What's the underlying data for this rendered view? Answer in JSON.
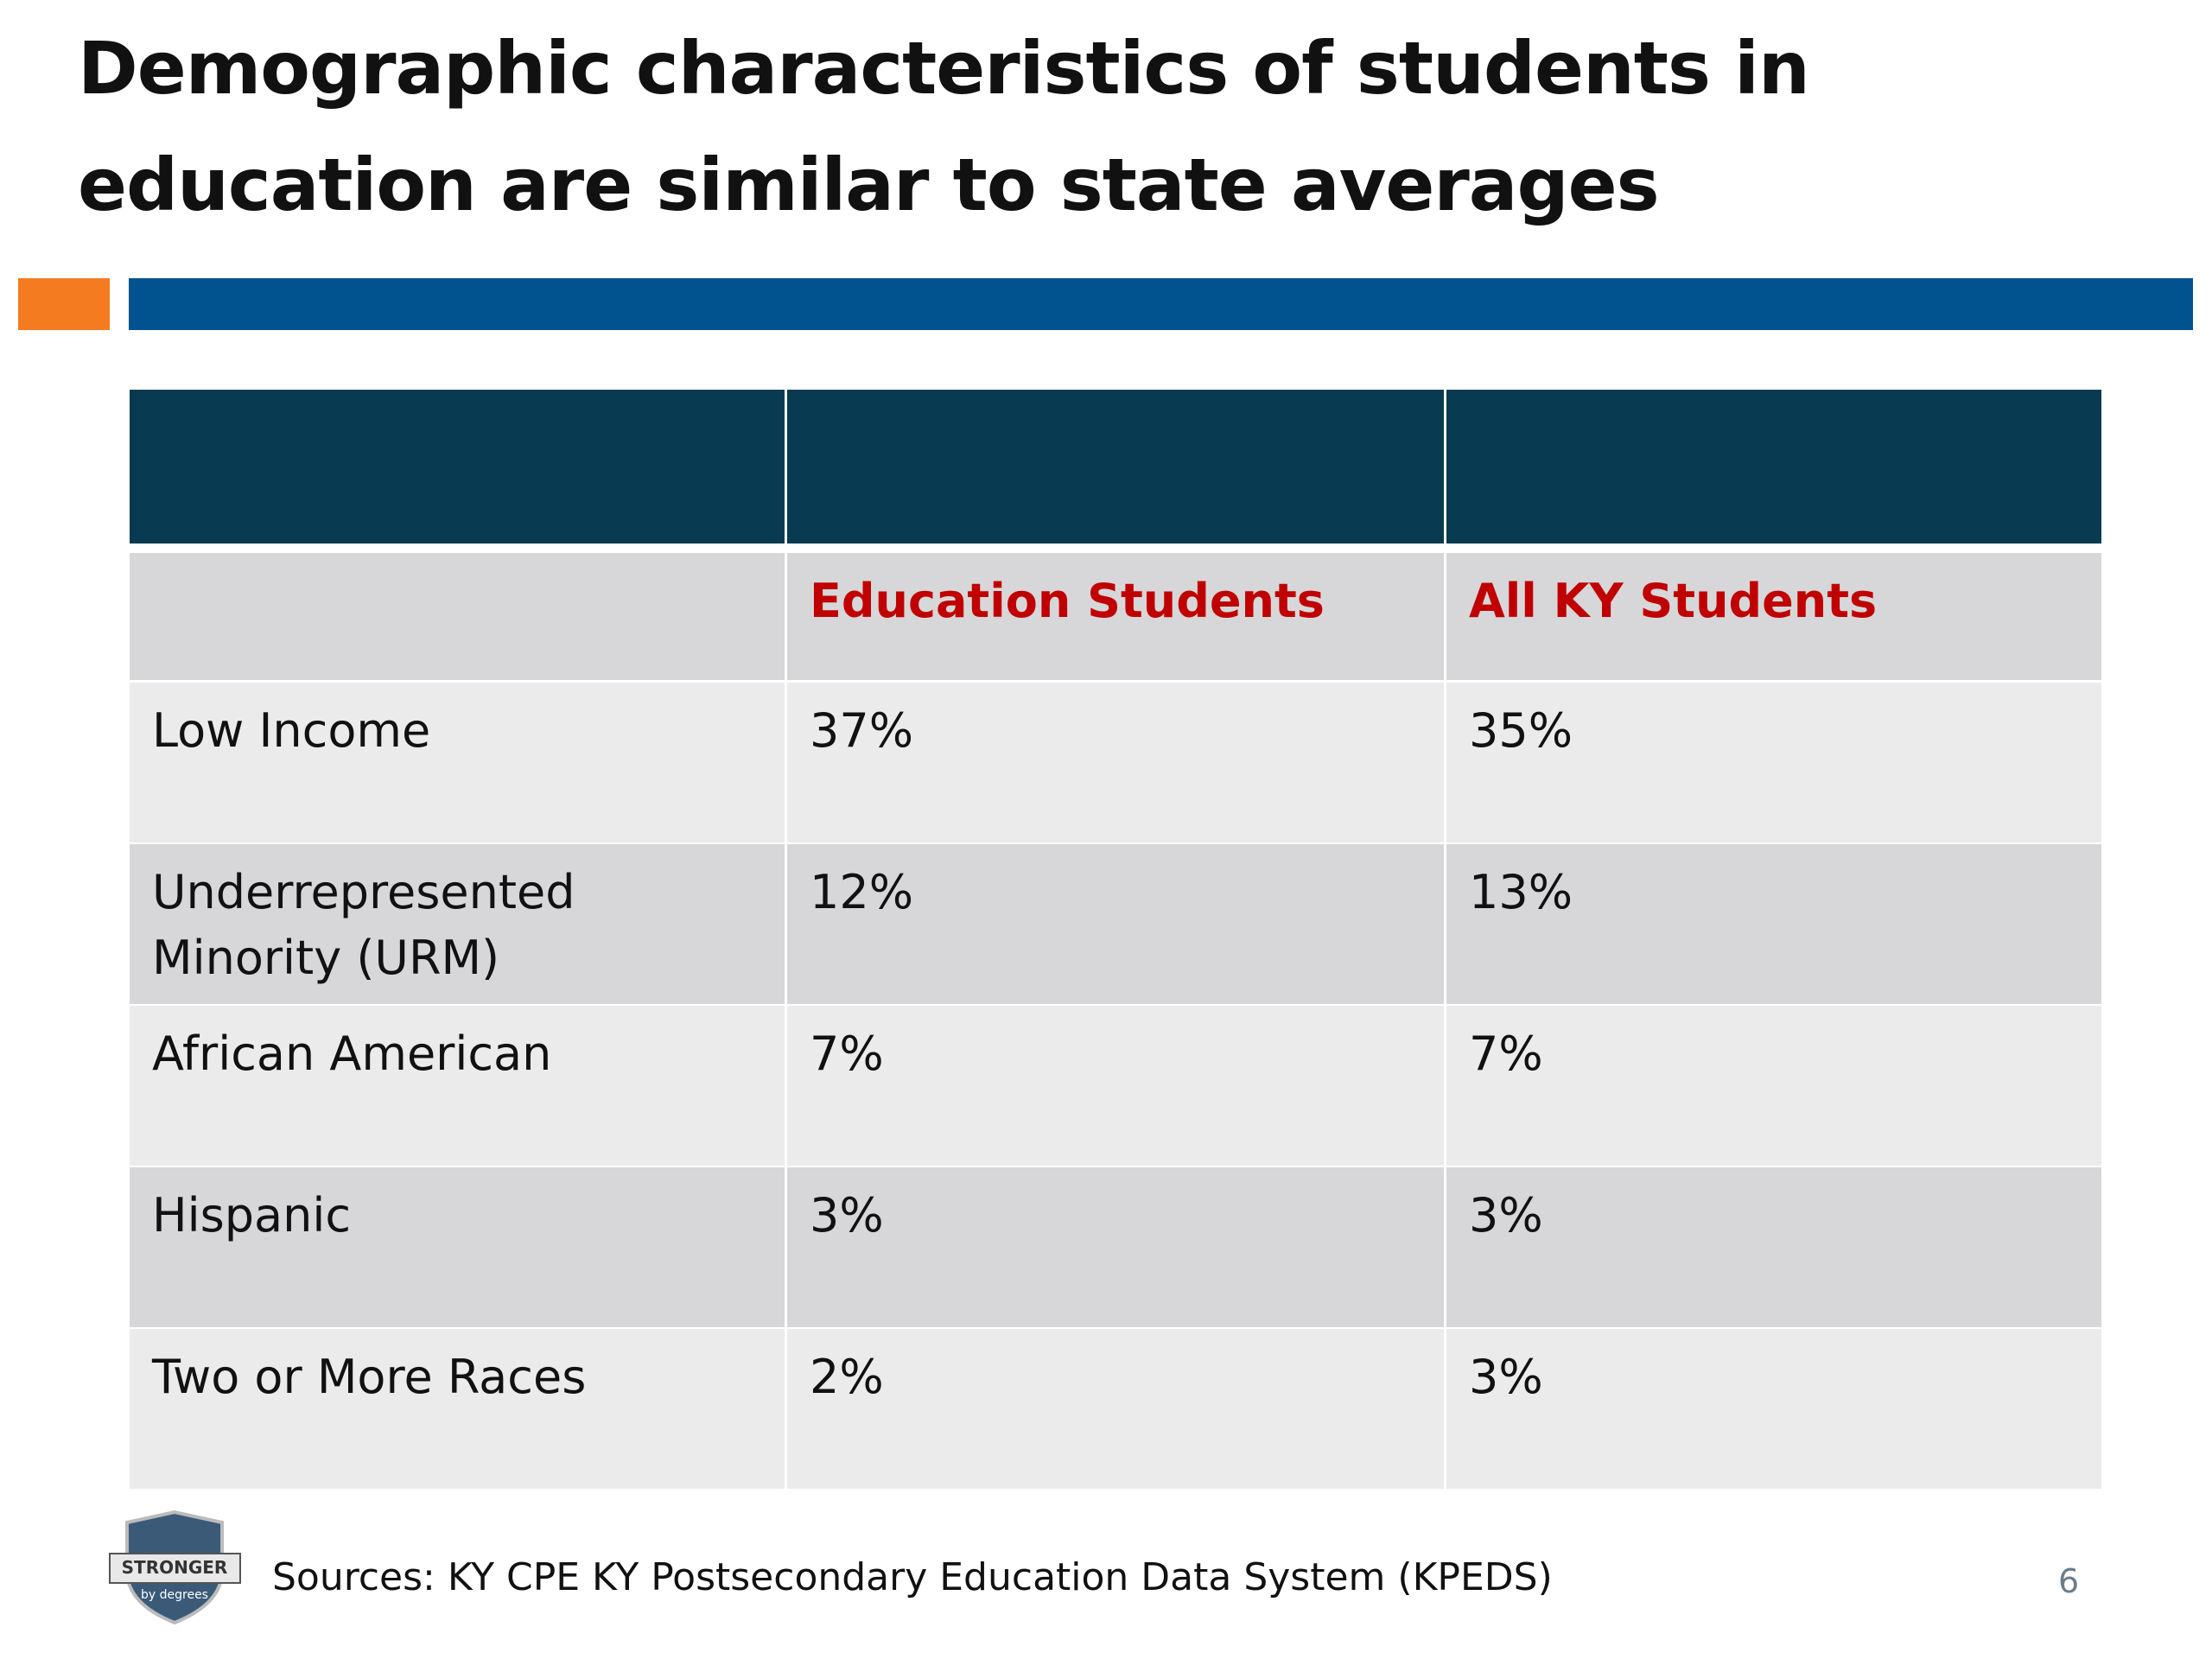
{
  "header": {
    "title_lines": [
      "Demographic characteristics of students in",
      "education are similar to state averages"
    ]
  },
  "table": {
    "columns": [
      "Education Students",
      "All KY Students"
    ],
    "rows": [
      {
        "label": [
          "Low Income"
        ],
        "values": [
          "37%",
          "35%"
        ]
      },
      {
        "label": [
          "Underrepresented",
          "Minority (URM)"
        ],
        "values": [
          "12%",
          "13%"
        ]
      },
      {
        "label": [
          "African American"
        ],
        "values": [
          "7%",
          "7%"
        ]
      },
      {
        "label": [
          "Hispanic"
        ],
        "values": [
          "3%",
          "3%"
        ]
      },
      {
        "label": [
          "Two or More Races"
        ],
        "values": [
          "2%",
          "3%"
        ]
      }
    ]
  },
  "footer": {
    "logo_top": "STRONGER",
    "logo_bottom": "by degrees",
    "source": "Sources: KY CPE KY Postsecondary Education Data System (KPEDS)",
    "page_number": "6"
  }
}
